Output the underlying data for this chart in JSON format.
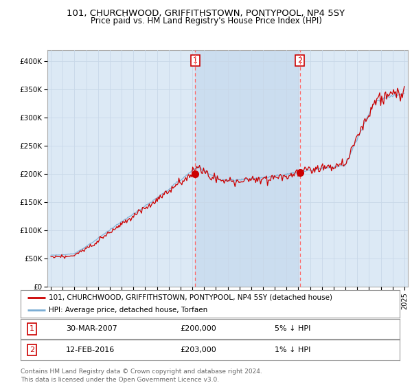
{
  "title": "101, CHURCHWOOD, GRIFFITHSTOWN, PONTYPOOL, NP4 5SY",
  "subtitle": "Price paid vs. HM Land Registry's House Price Index (HPI)",
  "legend_line1": "101, CHURCHWOOD, GRIFFITHSTOWN, PONTYPOOL, NP4 5SY (detached house)",
  "legend_line2": "HPI: Average price, detached house, Torfaen",
  "annotation1_label": "1",
  "annotation1_date": "30-MAR-2007",
  "annotation1_price": "£200,000",
  "annotation1_hpi": "5% ↓ HPI",
  "annotation2_label": "2",
  "annotation2_date": "12-FEB-2016",
  "annotation2_price": "£203,000",
  "annotation2_hpi": "1% ↓ HPI",
  "footer": "Contains HM Land Registry data © Crown copyright and database right 2024.\nThis data is licensed under the Open Government Licence v3.0.",
  "plot_bg_color": "#dce9f5",
  "shade_color": "#c5d8ed",
  "fig_bg_color": "#ffffff",
  "red_color": "#cc0000",
  "blue_color": "#7aadd4",
  "grid_color": "#bbbbbb",
  "ylim": [
    0,
    420000
  ],
  "yticks": [
    0,
    50000,
    100000,
    150000,
    200000,
    250000,
    300000,
    350000,
    400000
  ],
  "ytick_labels": [
    "£0",
    "£50K",
    "£100K",
    "£150K",
    "£200K",
    "£250K",
    "£300K",
    "£350K",
    "£400K"
  ],
  "point1_x": 2007.25,
  "point1_y": 200000,
  "point2_x": 2016.12,
  "point2_y": 203000,
  "xmin": 1994.7,
  "xmax": 2025.3
}
